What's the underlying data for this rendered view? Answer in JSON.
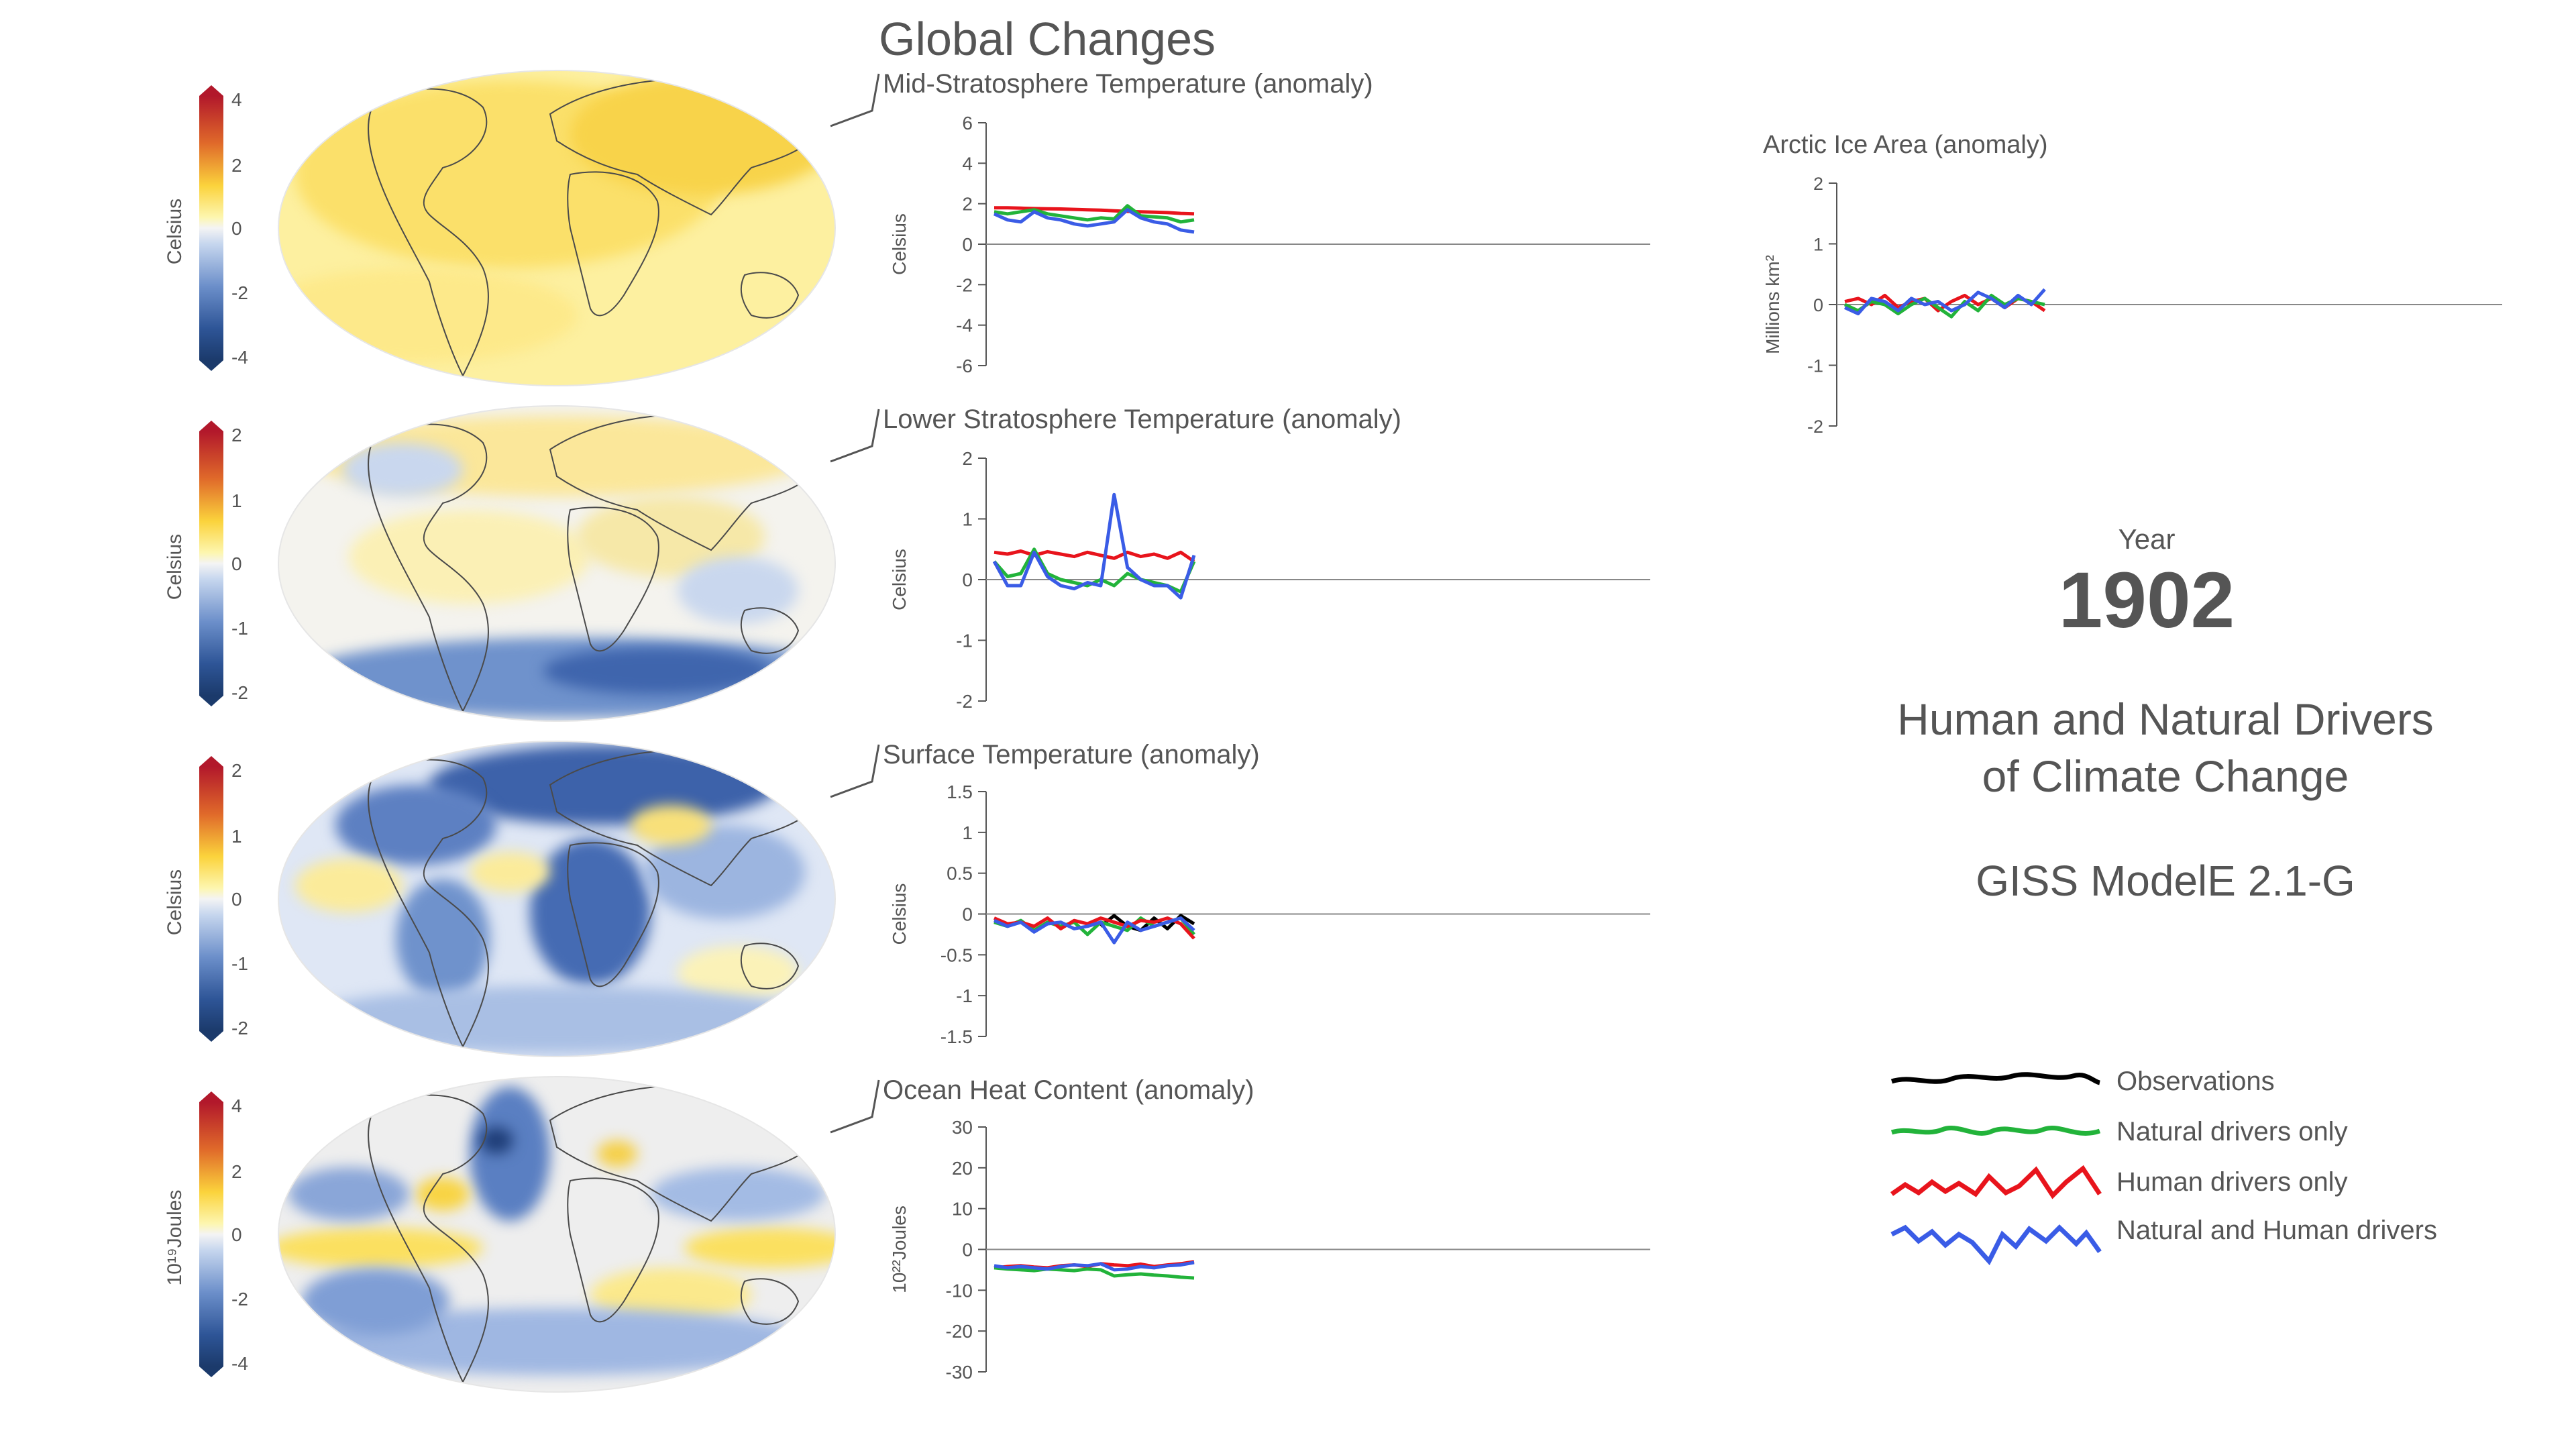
{
  "header": {
    "title": "Global Changes"
  },
  "year_block": {
    "label": "Year",
    "value": "1902"
  },
  "info": {
    "title_line1": "Human and Natural Drivers",
    "title_line2": "of Climate Change",
    "model": "GISS ModelE 2.1-G"
  },
  "legend": {
    "items": [
      {
        "label": "Observations",
        "color": "#000000"
      },
      {
        "label": "Natural drivers only",
        "color": "#22b33a"
      },
      {
        "label": "Human drivers only",
        "color": "#e8141c"
      },
      {
        "label": "Natural and Human drivers",
        "color": "#3a5ce6"
      }
    ]
  },
  "maps": [
    {
      "name": "mid-stratosphere-map",
      "colorbar": {
        "label": "Celsius",
        "ticks": [
          "4",
          "2",
          "0",
          "-2",
          "-4"
        ],
        "max_color": "#b2182b",
        "min_color": "#1b3a6b"
      },
      "dominant": "warm"
    },
    {
      "name": "lower-stratosphere-map",
      "colorbar": {
        "label": "Celsius",
        "ticks": [
          "2",
          "1",
          "0",
          "-1",
          "-2"
        ],
        "max_color": "#b2182b",
        "min_color": "#1b3a6b"
      },
      "dominant": "mixed"
    },
    {
      "name": "surface-temperature-map",
      "colorbar": {
        "label": "Celsius",
        "ticks": [
          "2",
          "1",
          "0",
          "-1",
          "-2"
        ],
        "max_color": "#b2182b",
        "min_color": "#1b3a6b"
      },
      "dominant": "cool"
    },
    {
      "name": "ocean-heat-content-map",
      "colorbar": {
        "label": "10¹⁹Joules",
        "ticks": [
          "4",
          "2",
          "0",
          "-2",
          "-4"
        ],
        "max_color": "#b2182b",
        "min_color": "#1b3a6b"
      },
      "dominant": "mixed"
    }
  ],
  "chart_data": [
    {
      "type": "line",
      "title": "Mid-Stratosphere Temperature (anomaly)",
      "ylabel": "Celsius",
      "ylim": [
        -6,
        6
      ],
      "yticks": [
        6,
        4,
        2,
        0,
        -2,
        -4,
        -6
      ],
      "grid": false,
      "series": [
        {
          "name": "Human drivers only",
          "color": "#e8141c",
          "values": [
            1.8,
            1.8,
            1.78,
            1.76,
            1.75,
            1.74,
            1.72,
            1.7,
            1.68,
            1.65,
            1.62,
            1.6,
            1.58,
            1.56,
            1.52,
            1.5
          ]
        },
        {
          "name": "Natural drivers only",
          "color": "#22b33a",
          "values": [
            1.6,
            1.5,
            1.6,
            1.7,
            1.5,
            1.4,
            1.3,
            1.2,
            1.3,
            1.25,
            1.9,
            1.4,
            1.35,
            1.3,
            1.1,
            1.2
          ]
        },
        {
          "name": "Natural and Human drivers",
          "color": "#3a5ce6",
          "values": [
            1.5,
            1.2,
            1.1,
            1.6,
            1.3,
            1.2,
            1.0,
            0.9,
            1.0,
            1.1,
            1.7,
            1.3,
            1.1,
            1.0,
            0.7,
            0.6
          ]
        }
      ]
    },
    {
      "type": "line",
      "title": "Lower Stratosphere Temperature (anomaly)",
      "ylabel": "Celsius",
      "ylim": [
        -2,
        2
      ],
      "yticks": [
        2,
        1,
        0,
        -1,
        -2
      ],
      "grid": false,
      "series": [
        {
          "name": "Human drivers only",
          "color": "#e8141c",
          "values": [
            0.45,
            0.42,
            0.47,
            0.4,
            0.46,
            0.42,
            0.38,
            0.45,
            0.4,
            0.35,
            0.45,
            0.38,
            0.42,
            0.35,
            0.45,
            0.3
          ]
        },
        {
          "name": "Natural drivers only",
          "color": "#22b33a",
          "values": [
            0.3,
            0.05,
            0.1,
            0.5,
            0.1,
            0.0,
            -0.05,
            -0.1,
            0.0,
            -0.1,
            0.1,
            0.0,
            -0.05,
            -0.1,
            -0.2,
            0.3
          ]
        },
        {
          "name": "Natural and Human drivers",
          "color": "#3a5ce6",
          "values": [
            0.3,
            -0.1,
            -0.1,
            0.45,
            0.05,
            -0.1,
            -0.15,
            -0.05,
            -0.1,
            1.4,
            0.2,
            0.0,
            -0.1,
            -0.1,
            -0.3,
            0.4
          ]
        }
      ]
    },
    {
      "type": "line",
      "title": "Surface Temperature (anomaly)",
      "ylabel": "Celsius",
      "ylim": [
        -1.5,
        1.5
      ],
      "yticks": [
        1.5,
        1,
        0.5,
        0,
        -0.5,
        -1,
        -1.5
      ],
      "grid": false,
      "series": [
        {
          "name": "Observations",
          "color": "#000000",
          "values": [
            null,
            null,
            null,
            null,
            null,
            null,
            null,
            null,
            -0.15,
            -0.02,
            -0.15,
            -0.2,
            -0.05,
            -0.18,
            -0.02,
            -0.12
          ]
        },
        {
          "name": "Natural drivers only",
          "color": "#22b33a",
          "values": [
            -0.1,
            -0.15,
            -0.08,
            -0.2,
            -0.1,
            -0.15,
            -0.1,
            -0.25,
            -0.1,
            -0.15,
            -0.2,
            -0.05,
            -0.15,
            -0.1,
            -0.05,
            -0.25
          ]
        },
        {
          "name": "Human drivers only",
          "color": "#e8141c",
          "values": [
            -0.05,
            -0.12,
            -0.1,
            -0.15,
            -0.05,
            -0.18,
            -0.08,
            -0.12,
            -0.05,
            -0.1,
            -0.15,
            -0.08,
            -0.1,
            -0.05,
            -0.12,
            -0.3
          ]
        },
        {
          "name": "Natural and Human drivers",
          "color": "#3a5ce6",
          "values": [
            -0.08,
            -0.15,
            -0.1,
            -0.22,
            -0.12,
            -0.1,
            -0.18,
            -0.15,
            -0.1,
            -0.35,
            -0.1,
            -0.2,
            -0.15,
            -0.1,
            -0.05,
            -0.2
          ]
        }
      ]
    },
    {
      "type": "line",
      "title": "Ocean Heat Content (anomaly)",
      "ylabel": "10²²Joules",
      "ylim": [
        -30,
        30
      ],
      "yticks": [
        30,
        20,
        10,
        0,
        -10,
        -20,
        -30
      ],
      "grid": false,
      "series": [
        {
          "name": "Human drivers only",
          "color": "#e8141c",
          "values": [
            -4.5,
            -4.2,
            -4.0,
            -4.3,
            -4.5,
            -4.0,
            -3.8,
            -4.2,
            -3.5,
            -3.8,
            -4.0,
            -3.6,
            -4.2,
            -3.8,
            -3.5,
            -3.0
          ]
        },
        {
          "name": "Natural drivers only",
          "color": "#22b33a",
          "values": [
            -4.5,
            -4.8,
            -5.0,
            -5.2,
            -4.8,
            -5.0,
            -5.2,
            -4.8,
            -5.0,
            -6.5,
            -6.2,
            -6.0,
            -6.3,
            -6.5,
            -6.8,
            -7.0
          ]
        },
        {
          "name": "Natural and Human drivers",
          "color": "#3a5ce6",
          "values": [
            -4.0,
            -4.5,
            -4.2,
            -4.5,
            -4.8,
            -4.2,
            -3.8,
            -4.0,
            -3.5,
            -5.0,
            -4.8,
            -4.2,
            -4.5,
            -4.0,
            -3.8,
            -3.2
          ]
        }
      ]
    },
    {
      "type": "line",
      "title": "Arctic Ice Area (anomaly)",
      "ylabel": "Millions km²",
      "ylim": [
        -2,
        2
      ],
      "yticks": [
        2,
        1,
        0,
        -1,
        -2
      ],
      "grid": false,
      "series": [
        {
          "name": "Human drivers only",
          "color": "#e8141c",
          "values": [
            0.05,
            0.1,
            0.0,
            0.15,
            -0.05,
            0.05,
            0.1,
            -0.1,
            0.05,
            0.15,
            0.0,
            0.1,
            -0.05,
            0.1,
            0.05,
            -0.1
          ]
        },
        {
          "name": "Natural drivers only",
          "color": "#22b33a",
          "values": [
            0.0,
            -0.1,
            0.05,
            0.0,
            -0.15,
            0.0,
            0.1,
            -0.05,
            -0.2,
            0.05,
            -0.1,
            0.15,
            0.0,
            0.1,
            0.05,
            0.0
          ]
        },
        {
          "name": "Natural and Human drivers",
          "color": "#3a5ce6",
          "values": [
            -0.05,
            -0.15,
            0.1,
            0.05,
            -0.1,
            0.1,
            0.0,
            0.05,
            -0.1,
            0.0,
            0.2,
            0.1,
            -0.05,
            0.15,
            0.0,
            0.25
          ]
        }
      ]
    }
  ]
}
